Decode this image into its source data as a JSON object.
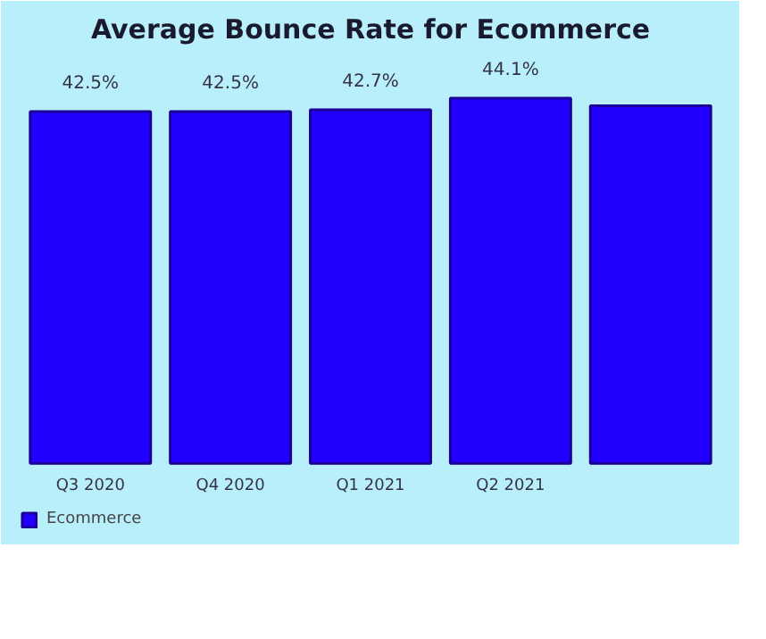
{
  "chart_data": {
    "type": "bar",
    "title": "Average Bounce Rate for Ecommerce",
    "categories": [
      "Q3 2020",
      "Q4 2020",
      "Q1 2021",
      "Q2 2021",
      null
    ],
    "series": [
      {
        "name": "Ecommerce",
        "color": "#2200ff",
        "values": [
          42.5,
          42.5,
          42.7,
          44.1,
          43.2
        ],
        "value_labels": [
          "42.5%",
          "42.5%",
          "42.7%",
          "44.1%",
          null
        ]
      }
    ],
    "legend": "bottom left",
    "tick_labels": "x"
  }
}
